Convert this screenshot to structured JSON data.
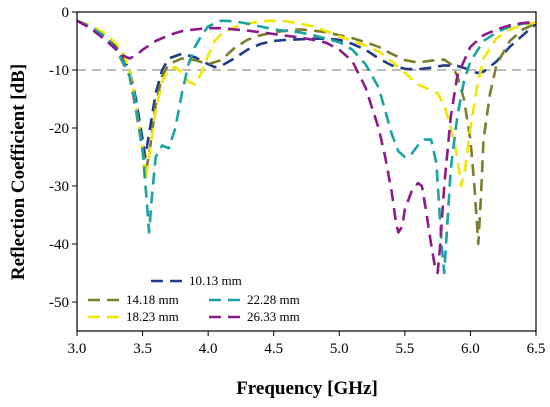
{
  "chart_data": {
    "type": "line",
    "xlabel": "Frequency [GHz]",
    "ylabel": "Reflection Coefficient [dB]",
    "xlim": [
      3.0,
      6.5
    ],
    "ylim": [
      -55,
      0
    ],
    "xticks": [
      "3.0",
      "3.5",
      "4.0",
      "4.5",
      "5.0",
      "5.5",
      "6.0",
      "6.5"
    ],
    "yticks": [
      "0",
      "-10",
      "-20",
      "-30",
      "-40",
      "-50"
    ],
    "xtick_values": [
      3.0,
      3.5,
      4.0,
      4.5,
      5.0,
      5.5,
      6.0,
      6.5
    ],
    "ytick_values": [
      0,
      -10,
      -20,
      -30,
      -40,
      -50
    ],
    "reference_line": {
      "y": -10,
      "color": "#bdbdbd"
    },
    "grid": false,
    "legend_position": "bottom-left",
    "series": [
      {
        "name": "10.13 mm",
        "color": "#1f3c88",
        "points": [
          [
            3.0,
            -1.5
          ],
          [
            3.1,
            -2.5
          ],
          [
            3.2,
            -4
          ],
          [
            3.3,
            -6
          ],
          [
            3.4,
            -10
          ],
          [
            3.45,
            -15
          ],
          [
            3.5,
            -22
          ],
          [
            3.52,
            -25
          ],
          [
            3.55,
            -21
          ],
          [
            3.6,
            -14
          ],
          [
            3.65,
            -10
          ],
          [
            3.7,
            -8
          ],
          [
            3.8,
            -7.2
          ],
          [
            3.9,
            -7.8
          ],
          [
            4.0,
            -9
          ],
          [
            4.05,
            -9.5
          ],
          [
            4.1,
            -9.3
          ],
          [
            4.2,
            -8
          ],
          [
            4.3,
            -6.5
          ],
          [
            4.4,
            -5.5
          ],
          [
            4.5,
            -5
          ],
          [
            4.6,
            -4.8
          ],
          [
            4.7,
            -4.7
          ],
          [
            4.8,
            -4.6
          ],
          [
            4.9,
            -4.6
          ],
          [
            5.0,
            -4.8
          ],
          [
            5.1,
            -5.5
          ],
          [
            5.2,
            -6.5
          ],
          [
            5.3,
            -8
          ],
          [
            5.4,
            -9.2
          ],
          [
            5.5,
            -9.8
          ],
          [
            5.6,
            -9.9
          ],
          [
            5.7,
            -9.6
          ],
          [
            5.8,
            -9.2
          ],
          [
            5.9,
            -9.3
          ],
          [
            6.0,
            -10
          ],
          [
            6.05,
            -10.5
          ],
          [
            6.1,
            -10.3
          ],
          [
            6.2,
            -8.5
          ],
          [
            6.3,
            -6
          ],
          [
            6.4,
            -4
          ],
          [
            6.5,
            -2
          ]
        ]
      },
      {
        "name": "14.18 mm",
        "color": "#7d7d2e",
        "points": [
          [
            3.0,
            -1.5
          ],
          [
            3.1,
            -2.5
          ],
          [
            3.2,
            -4
          ],
          [
            3.3,
            -6.5
          ],
          [
            3.4,
            -11
          ],
          [
            3.45,
            -17
          ],
          [
            3.5,
            -24
          ],
          [
            3.53,
            -27
          ],
          [
            3.56,
            -23
          ],
          [
            3.6,
            -16
          ],
          [
            3.65,
            -11
          ],
          [
            3.7,
            -9
          ],
          [
            3.8,
            -8
          ],
          [
            3.9,
            -8.3
          ],
          [
            4.0,
            -9
          ],
          [
            4.1,
            -8.3
          ],
          [
            4.2,
            -6.2
          ],
          [
            4.3,
            -4.8
          ],
          [
            4.4,
            -4
          ],
          [
            4.5,
            -3.5
          ],
          [
            4.6,
            -3.2
          ],
          [
            4.7,
            -3
          ],
          [
            4.8,
            -3.2
          ],
          [
            4.9,
            -3.5
          ],
          [
            5.0,
            -4
          ],
          [
            5.1,
            -4.5
          ],
          [
            5.2,
            -5.2
          ],
          [
            5.3,
            -6
          ],
          [
            5.4,
            -7.2
          ],
          [
            5.5,
            -8.3
          ],
          [
            5.6,
            -8.7
          ],
          [
            5.7,
            -8.4
          ],
          [
            5.8,
            -8.2
          ],
          [
            5.85,
            -9
          ],
          [
            5.9,
            -11
          ],
          [
            5.95,
            -15
          ],
          [
            6.0,
            -22
          ],
          [
            6.03,
            -30
          ],
          [
            6.06,
            -40
          ],
          [
            6.08,
            -32
          ],
          [
            6.1,
            -22
          ],
          [
            6.15,
            -14
          ],
          [
            6.2,
            -9
          ],
          [
            6.3,
            -5
          ],
          [
            6.4,
            -3
          ],
          [
            6.5,
            -2
          ]
        ]
      },
      {
        "name": "18.23 mm",
        "color": "#f2e600",
        "points": [
          [
            3.0,
            -1.5
          ],
          [
            3.1,
            -2.3
          ],
          [
            3.2,
            -3.5
          ],
          [
            3.3,
            -5.5
          ],
          [
            3.35,
            -7
          ],
          [
            3.4,
            -10
          ],
          [
            3.45,
            -16
          ],
          [
            3.5,
            -24
          ],
          [
            3.52,
            -29
          ],
          [
            3.55,
            -25
          ],
          [
            3.6,
            -17
          ],
          [
            3.65,
            -12
          ],
          [
            3.7,
            -10
          ],
          [
            3.75,
            -9.5
          ],
          [
            3.8,
            -10.5
          ],
          [
            3.85,
            -12
          ],
          [
            3.9,
            -12.5
          ],
          [
            3.95,
            -10.5
          ],
          [
            4.0,
            -7.5
          ],
          [
            4.05,
            -5
          ],
          [
            4.1,
            -3.8
          ],
          [
            4.2,
            -2.6
          ],
          [
            4.3,
            -2
          ],
          [
            4.4,
            -1.6
          ],
          [
            4.5,
            -1.5
          ],
          [
            4.6,
            -1.6
          ],
          [
            4.7,
            -2
          ],
          [
            4.8,
            -2.5
          ],
          [
            4.9,
            -3.3
          ],
          [
            5.0,
            -4.2
          ],
          [
            5.1,
            -5
          ],
          [
            5.2,
            -5.8
          ],
          [
            5.3,
            -6.8
          ],
          [
            5.4,
            -8.5
          ],
          [
            5.5,
            -10.5
          ],
          [
            5.6,
            -12.5
          ],
          [
            5.65,
            -13
          ],
          [
            5.7,
            -13.5
          ],
          [
            5.75,
            -14
          ],
          [
            5.8,
            -16
          ],
          [
            5.85,
            -20
          ],
          [
            5.9,
            -25
          ],
          [
            5.93,
            -30
          ],
          [
            5.96,
            -27
          ],
          [
            6.0,
            -20
          ],
          [
            6.05,
            -13
          ],
          [
            6.1,
            -8
          ],
          [
            6.2,
            -4.5
          ],
          [
            6.3,
            -3
          ],
          [
            6.4,
            -2.2
          ],
          [
            6.5,
            -1.8
          ]
        ]
      },
      {
        "name": "22.28 mm",
        "color": "#19a3a3",
        "points": [
          [
            3.0,
            -1.5
          ],
          [
            3.1,
            -2.5
          ],
          [
            3.2,
            -4
          ],
          [
            3.3,
            -6.5
          ],
          [
            3.35,
            -8.5
          ],
          [
            3.4,
            -11
          ],
          [
            3.45,
            -16
          ],
          [
            3.5,
            -24
          ],
          [
            3.53,
            -32
          ],
          [
            3.55,
            -38
          ],
          [
            3.57,
            -32
          ],
          [
            3.6,
            -25
          ],
          [
            3.65,
            -23
          ],
          [
            3.7,
            -23.5
          ],
          [
            3.75,
            -20
          ],
          [
            3.8,
            -14
          ],
          [
            3.85,
            -9
          ],
          [
            3.9,
            -6
          ],
          [
            3.95,
            -4
          ],
          [
            4.0,
            -2.5
          ],
          [
            4.1,
            -1.5
          ],
          [
            4.2,
            -1.6
          ],
          [
            4.3,
            -2
          ],
          [
            4.4,
            -2.5
          ],
          [
            4.5,
            -3
          ],
          [
            4.6,
            -3.3
          ],
          [
            4.7,
            -3.5
          ],
          [
            4.8,
            -4
          ],
          [
            4.9,
            -4.6
          ],
          [
            5.0,
            -5.2
          ],
          [
            5.1,
            -6.5
          ],
          [
            5.2,
            -9
          ],
          [
            5.3,
            -13
          ],
          [
            5.35,
            -17
          ],
          [
            5.4,
            -21
          ],
          [
            5.45,
            -24
          ],
          [
            5.5,
            -25
          ],
          [
            5.55,
            -24.5
          ],
          [
            5.6,
            -23
          ],
          [
            5.65,
            -22
          ],
          [
            5.7,
            -22
          ],
          [
            5.74,
            -26
          ],
          [
            5.76,
            -33
          ],
          [
            5.78,
            -40
          ],
          [
            5.8,
            -45
          ],
          [
            5.82,
            -38
          ],
          [
            5.85,
            -27
          ],
          [
            5.9,
            -18
          ],
          [
            5.95,
            -12
          ],
          [
            6.0,
            -8.5
          ],
          [
            6.1,
            -5
          ],
          [
            6.2,
            -3.5
          ],
          [
            6.3,
            -2.5
          ],
          [
            6.4,
            -2
          ],
          [
            6.5,
            -1.8
          ]
        ]
      },
      {
        "name": "26.33 mm",
        "color": "#8b1a8b",
        "points": [
          [
            3.0,
            -1.5
          ],
          [
            3.1,
            -2.8
          ],
          [
            3.2,
            -4.5
          ],
          [
            3.3,
            -6.5
          ],
          [
            3.35,
            -7.5
          ],
          [
            3.4,
            -8
          ],
          [
            3.45,
            -7.5
          ],
          [
            3.5,
            -6.5
          ],
          [
            3.6,
            -5
          ],
          [
            3.7,
            -4
          ],
          [
            3.8,
            -3.3
          ],
          [
            3.9,
            -3
          ],
          [
            4.0,
            -2.8
          ],
          [
            4.1,
            -2.8
          ],
          [
            4.2,
            -3
          ],
          [
            4.3,
            -3.2
          ],
          [
            4.4,
            -3.5
          ],
          [
            4.5,
            -3.8
          ],
          [
            4.6,
            -4.1
          ],
          [
            4.7,
            -4.4
          ],
          [
            4.8,
            -4.8
          ],
          [
            4.9,
            -5.3
          ],
          [
            5.0,
            -6.5
          ],
          [
            5.1,
            -8.5
          ],
          [
            5.2,
            -13
          ],
          [
            5.3,
            -20
          ],
          [
            5.35,
            -25
          ],
          [
            5.4,
            -31
          ],
          [
            5.43,
            -36
          ],
          [
            5.45,
            -38
          ],
          [
            5.48,
            -37
          ],
          [
            5.5,
            -34
          ],
          [
            5.55,
            -31
          ],
          [
            5.6,
            -29.5
          ],
          [
            5.63,
            -30
          ],
          [
            5.66,
            -34
          ],
          [
            5.7,
            -40
          ],
          [
            5.73,
            -44
          ],
          [
            5.75,
            -45
          ],
          [
            5.77,
            -40
          ],
          [
            5.8,
            -30
          ],
          [
            5.85,
            -18
          ],
          [
            5.9,
            -11
          ],
          [
            6.0,
            -6
          ],
          [
            6.1,
            -4
          ],
          [
            6.2,
            -3
          ],
          [
            6.3,
            -2.3
          ],
          [
            6.4,
            -1.9
          ],
          [
            6.5,
            -1.7
          ]
        ]
      }
    ]
  }
}
